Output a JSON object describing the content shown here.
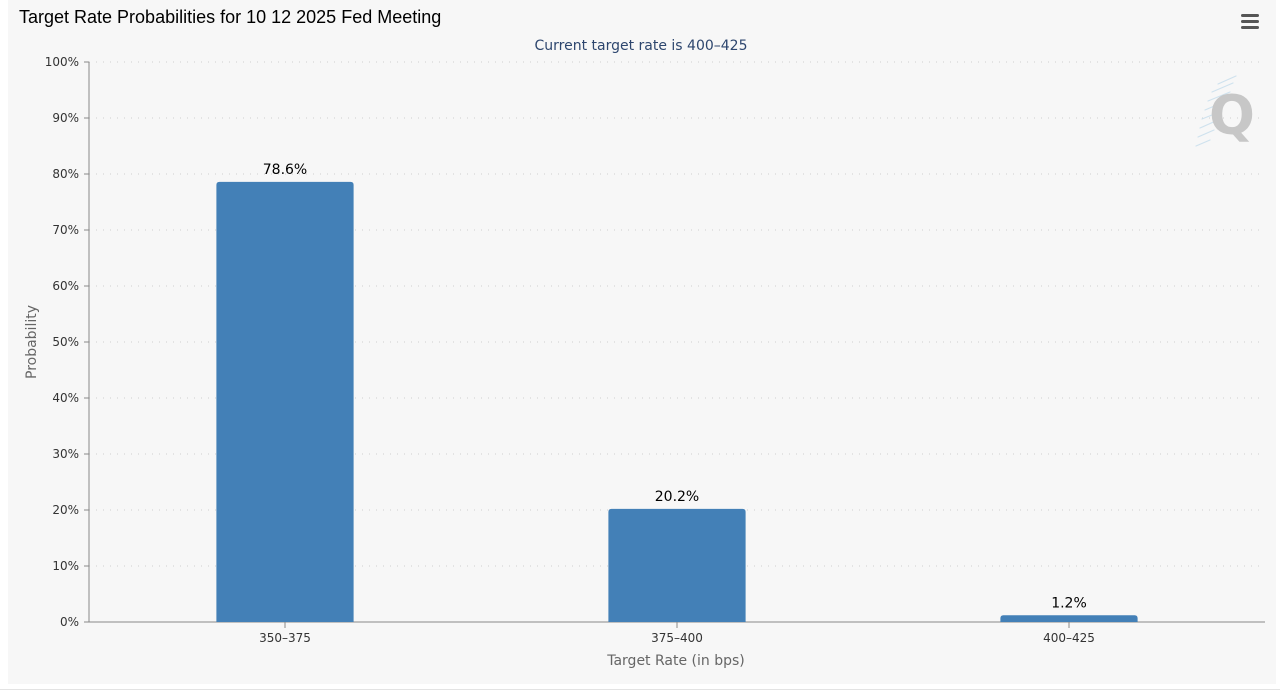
{
  "header": {
    "title": "Target Rate Probabilities for 10 12 2025 Fed Meeting",
    "menu_icon": "hamburger-menu-icon"
  },
  "watermark": {
    "letter": "Q",
    "icon": "q-logo-icon"
  },
  "colors": {
    "bar": "#4380b7",
    "subtitle": "#2d466e",
    "grid": "#cfcfcf",
    "axis": "#888888"
  },
  "chart_data": {
    "type": "bar",
    "title": "Target Rate Probabilities for 10 12 2025 Fed Meeting",
    "subtitle": "Current target rate is 400–425",
    "xlabel": "Target Rate (in bps)",
    "ylabel": "Probability",
    "categories": [
      "350–375",
      "375–400",
      "400–425"
    ],
    "values": [
      78.6,
      20.2,
      1.2
    ],
    "data_labels": [
      "78.6%",
      "20.2%",
      "1.2%"
    ],
    "ylim": [
      0,
      100
    ],
    "yticks": [
      0,
      10,
      20,
      30,
      40,
      50,
      60,
      70,
      80,
      90,
      100
    ],
    "ytick_labels": [
      "0%",
      "10%",
      "20%",
      "30%",
      "40%",
      "50%",
      "60%",
      "70%",
      "80%",
      "90%",
      "100%"
    ],
    "grid": true,
    "legend": "none"
  }
}
